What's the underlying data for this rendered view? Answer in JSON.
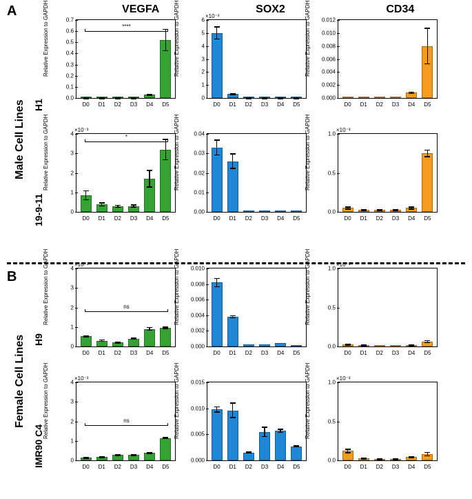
{
  "panels": {
    "A": "A",
    "B": "B"
  },
  "section_labels": {
    "male": "Male Cell Lines",
    "female": "Female Cell Lines"
  },
  "columns": [
    "VEGFA",
    "SOX2",
    "CD34"
  ],
  "rows": [
    {
      "id": "H1",
      "label": "H1",
      "section": "male"
    },
    {
      "id": "19911",
      "label": "19-9-11",
      "section": "male"
    },
    {
      "id": "H9",
      "label": "H9",
      "section": "female"
    },
    {
      "id": "IMR90C4",
      "label": "IMR90 C4",
      "section": "female"
    }
  ],
  "xticks": [
    "D0",
    "D1",
    "D2",
    "D3",
    "D4",
    "D5"
  ],
  "ylabel": "Relative Expression to GAPDH",
  "colors": {
    "VEGFA": "#34a334",
    "SOX2": "#1e88d6",
    "CD34": "#f59b1e",
    "axis": "#000000"
  },
  "border_darken": "rgba(0,0,0,0.3)",
  "fontsize": {
    "panel": 20,
    "section": 16,
    "rowlabel": 14,
    "header": 16,
    "axis": 8,
    "tick": 8
  },
  "charts": {
    "H1": {
      "VEGFA": {
        "ymax": 0.7,
        "step": 0.1,
        "mult": null,
        "vals": [
          0.005,
          0.003,
          0.003,
          0.006,
          0.03,
          0.52
        ],
        "errs": [
          0.003,
          0.003,
          0.003,
          0.003,
          0.01,
          0.1
        ],
        "sig": {
          "label": "****",
          "i": 0,
          "j": 5,
          "y": 0.62
        }
      },
      "SOX2": {
        "ymax": 6,
        "step": 1,
        "mult": "×10⁻³",
        "vals": [
          5.0,
          0.3,
          0.05,
          0.05,
          0.04,
          0.03
        ],
        "errs": [
          0.5,
          0.05,
          0.02,
          0.02,
          0.02,
          0.02
        ]
      },
      "CD34": {
        "ymax": 0.012,
        "step": 0.002,
        "mult": null,
        "vals": [
          0.0001,
          0.0001,
          0.0001,
          0.0002,
          0.0008,
          0.008
        ],
        "errs": [
          0,
          0,
          0,
          0,
          0.0002,
          0.0028
        ]
      }
    },
    "19911": {
      "VEGFA": {
        "ymax": 4,
        "step": 1,
        "mult": "×10⁻³",
        "vals": [
          0.85,
          0.38,
          0.28,
          0.3,
          1.7,
          3.2
        ],
        "errs": [
          0.25,
          0.1,
          0.08,
          0.08,
          0.45,
          0.55
        ],
        "sig": {
          "label": "*",
          "i": 0,
          "j": 5,
          "y": 3.7
        }
      },
      "SOX2": {
        "ymax": 0.04,
        "step": 0.01,
        "mult": null,
        "vals": [
          0.033,
          0.026,
          0.0005,
          0.0004,
          0.0004,
          0.0004
        ],
        "errs": [
          0.004,
          0.004,
          0,
          0,
          0,
          0
        ]
      },
      "CD34": {
        "ymax": 1,
        "step": 0.5,
        "mult": "×10⁻³",
        "vals": [
          0.05,
          0.03,
          0.03,
          0.03,
          0.05,
          0.75
        ],
        "errs": [
          0.02,
          0.01,
          0.01,
          0.01,
          0.02,
          0.05
        ]
      }
    },
    "H9": {
      "VEGFA": {
        "ymax": 4,
        "step": 1,
        "mult": "×10⁻³",
        "vals": [
          0.52,
          0.3,
          0.2,
          0.4,
          0.9,
          0.95
        ],
        "errs": [
          0.05,
          0.06,
          0.04,
          0.05,
          0.1,
          0.06
        ],
        "sig": {
          "label": "ns",
          "i": 0,
          "j": 5,
          "y": 1.9
        }
      },
      "SOX2": {
        "ymax": 0.01,
        "step": 0.002,
        "mult": null,
        "vals": [
          0.0082,
          0.0038,
          0.0003,
          0.0003,
          0.0004,
          0.0002
        ],
        "errs": [
          0.0006,
          0.0002,
          0,
          0,
          0,
          0
        ]
      },
      "CD34": {
        "ymax": 1,
        "step": 0.5,
        "mult": "×10⁻³",
        "vals": [
          0.03,
          0.02,
          0.01,
          0.01,
          0.02,
          0.06
        ],
        "errs": [
          0.01,
          0.01,
          0,
          0,
          0.01,
          0.02
        ]
      }
    },
    "IMR90C4": {
      "VEGFA": {
        "ymax": 4,
        "step": 1,
        "mult": "×10⁻³",
        "vals": [
          0.15,
          0.18,
          0.28,
          0.28,
          0.4,
          1.15
        ],
        "errs": [
          0.02,
          0.02,
          0.03,
          0.03,
          0.04,
          0.05
        ],
        "sig": {
          "label": "ns",
          "i": 0,
          "j": 5,
          "y": 1.9
        }
      },
      "SOX2": {
        "ymax": 0.015,
        "step": 0.005,
        "mult": null,
        "vals": [
          0.0098,
          0.0096,
          0.0015,
          0.0055,
          0.0057,
          0.0027
        ],
        "errs": [
          0.0006,
          0.0015,
          0.0002,
          0.001,
          0.0004,
          0.0002
        ]
      },
      "CD34": {
        "ymax": 1,
        "step": 0.5,
        "mult": "×10⁻³",
        "vals": [
          0.12,
          0.03,
          0.02,
          0.02,
          0.04,
          0.08
        ],
        "errs": [
          0.03,
          0.01,
          0.01,
          0.01,
          0.01,
          0.03
        ]
      }
    }
  }
}
